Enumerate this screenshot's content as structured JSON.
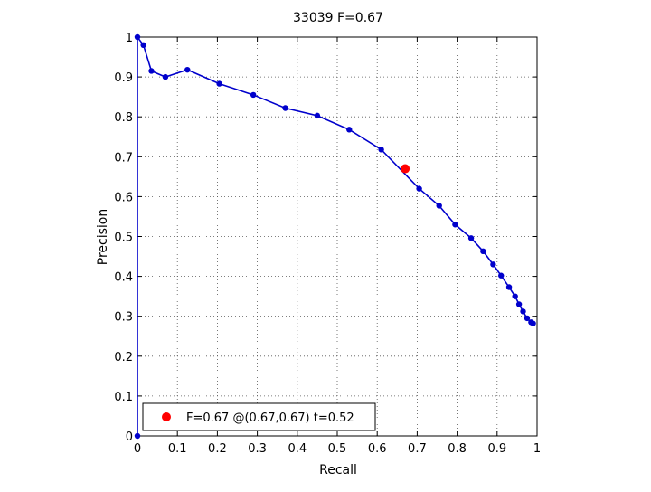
{
  "chart_data": {
    "type": "line",
    "title": "33039 F=0.67",
    "xlabel": "Recall",
    "ylabel": "Precision",
    "xlim": [
      0,
      1
    ],
    "ylim": [
      0,
      1
    ],
    "xticks": [
      "0",
      "0.1",
      "0.2",
      "0.3",
      "0.4",
      "0.5",
      "0.6",
      "0.7",
      "0.8",
      "0.9",
      "1"
    ],
    "yticks": [
      "0",
      "0.1",
      "0.2",
      "0.3",
      "0.4",
      "0.5",
      "0.6",
      "0.7",
      "0.8",
      "0.9",
      "1"
    ],
    "grid": true,
    "legend_position": "bottom-left",
    "series": [
      {
        "color": "#0000cc",
        "x": [
          0.0,
          0.0,
          0.015,
          0.035,
          0.07,
          0.125,
          0.205,
          0.29,
          0.37,
          0.45,
          0.53,
          0.61,
          0.705,
          0.755,
          0.795,
          0.835,
          0.865,
          0.89,
          0.91,
          0.93,
          0.945,
          0.955,
          0.965,
          0.975,
          0.985,
          0.99
        ],
        "y": [
          0.0,
          1.0,
          0.98,
          0.915,
          0.9,
          0.918,
          0.883,
          0.855,
          0.822,
          0.803,
          0.768,
          0.718,
          0.62,
          0.577,
          0.53,
          0.496,
          0.463,
          0.43,
          0.402,
          0.373,
          0.35,
          0.33,
          0.312,
          0.295,
          0.285,
          0.282
        ]
      }
    ],
    "highlight": {
      "x": 0.67,
      "y": 0.67,
      "color": "#ff0000",
      "label": "F=0.67 @(0.67,0.67) t=0.52"
    }
  }
}
